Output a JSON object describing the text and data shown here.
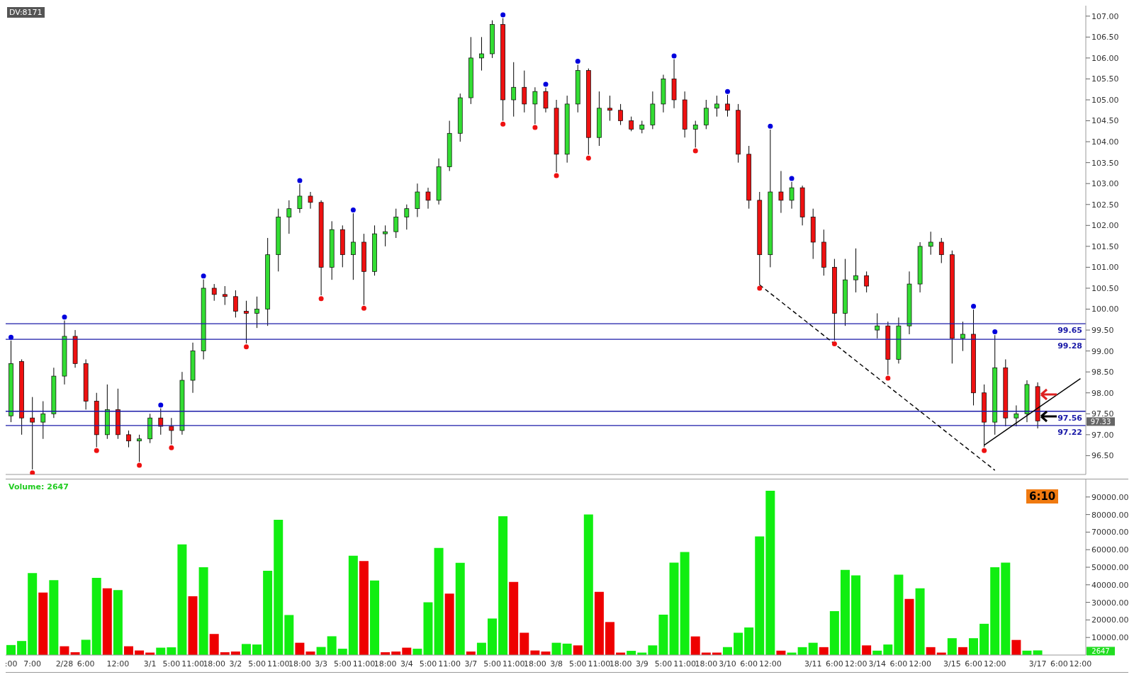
{
  "chart_data": [
    {
      "type": "candlestick",
      "tick_labels": "y",
      "ohlc": [
        [
          97.45,
          99.25,
          97.3,
          98.7
        ],
        [
          98.75,
          98.8,
          97.0,
          97.4
        ],
        [
          97.4,
          97.9,
          96.17,
          97.3
        ],
        [
          97.3,
          97.8,
          96.9,
          97.5
        ],
        [
          97.5,
          98.6,
          97.4,
          98.4
        ],
        [
          98.4,
          99.73,
          98.2,
          99.35
        ],
        [
          99.35,
          99.5,
          98.6,
          98.7
        ],
        [
          98.7,
          98.8,
          97.6,
          97.8
        ],
        [
          97.8,
          98.0,
          96.7,
          97.0
        ],
        [
          97.0,
          98.2,
          96.9,
          97.6
        ],
        [
          97.6,
          98.1,
          96.9,
          97.0
        ],
        [
          97.0,
          97.1,
          96.7,
          96.85
        ],
        [
          96.85,
          97.0,
          96.35,
          96.9
        ],
        [
          96.9,
          97.5,
          96.8,
          97.4
        ],
        [
          97.4,
          97.63,
          97.0,
          97.2
        ],
        [
          97.2,
          97.4,
          96.77,
          97.1
        ],
        [
          97.1,
          98.5,
          97.0,
          98.3
        ],
        [
          98.3,
          99.2,
          98.0,
          99.0
        ],
        [
          99.0,
          100.71,
          98.8,
          100.5
        ],
        [
          100.5,
          100.6,
          100.2,
          100.35
        ],
        [
          100.35,
          100.55,
          100.1,
          100.3
        ],
        [
          100.3,
          100.45,
          99.8,
          99.95
        ],
        [
          99.95,
          100.2,
          99.18,
          99.9
        ],
        [
          99.9,
          100.3,
          99.55,
          100.0
        ],
        [
          100.0,
          101.7,
          99.6,
          101.3
        ],
        [
          101.3,
          102.4,
          100.9,
          102.2
        ],
        [
          102.2,
          102.6,
          101.8,
          102.4
        ],
        [
          102.4,
          102.99,
          102.3,
          102.7
        ],
        [
          102.7,
          102.8,
          102.4,
          102.55
        ],
        [
          102.55,
          102.6,
          100.33,
          101.0
        ],
        [
          101.0,
          102.1,
          100.7,
          101.9
        ],
        [
          101.9,
          102.0,
          101.0,
          101.3
        ],
        [
          101.3,
          102.29,
          100.7,
          101.6
        ],
        [
          101.6,
          101.8,
          100.1,
          100.9
        ],
        [
          100.9,
          102.0,
          100.8,
          101.8
        ],
        [
          101.8,
          102.0,
          101.5,
          101.85
        ],
        [
          101.85,
          102.4,
          101.7,
          102.2
        ],
        [
          102.2,
          102.5,
          101.9,
          102.4
        ],
        [
          102.4,
          103.0,
          102.2,
          102.8
        ],
        [
          102.8,
          102.9,
          102.4,
          102.6
        ],
        [
          102.6,
          103.6,
          102.5,
          103.4
        ],
        [
          103.4,
          104.5,
          103.3,
          104.2
        ],
        [
          104.2,
          105.15,
          104.0,
          105.05
        ],
        [
          105.05,
          106.5,
          104.9,
          106.0
        ],
        [
          106.0,
          106.5,
          105.7,
          106.1
        ],
        [
          106.1,
          106.9,
          106.0,
          106.8
        ],
        [
          106.8,
          106.95,
          104.5,
          105.0
        ],
        [
          105.0,
          105.9,
          104.6,
          105.3
        ],
        [
          105.3,
          105.7,
          104.7,
          104.9
        ],
        [
          104.9,
          105.3,
          104.42,
          105.2
        ],
        [
          105.2,
          105.29,
          104.7,
          104.8
        ],
        [
          104.8,
          105.0,
          103.27,
          103.7
        ],
        [
          103.7,
          105.1,
          103.5,
          104.9
        ],
        [
          104.9,
          105.84,
          104.7,
          105.7
        ],
        [
          105.7,
          105.75,
          103.69,
          104.1
        ],
        [
          104.1,
          105.2,
          103.9,
          104.8
        ],
        [
          104.8,
          105.1,
          104.5,
          104.75
        ],
        [
          104.75,
          104.9,
          104.4,
          104.5
        ],
        [
          104.5,
          104.6,
          104.25,
          104.3
        ],
        [
          104.3,
          104.5,
          104.2,
          104.4
        ],
        [
          104.4,
          105.2,
          104.3,
          104.9
        ],
        [
          104.9,
          105.6,
          104.7,
          105.5
        ],
        [
          105.5,
          105.97,
          104.8,
          105.0
        ],
        [
          105.0,
          105.2,
          104.1,
          104.3
        ],
        [
          104.3,
          104.5,
          103.86,
          104.4
        ],
        [
          104.4,
          105.0,
          104.3,
          104.8
        ],
        [
          104.8,
          105.1,
          104.6,
          104.9
        ],
        [
          104.9,
          105.12,
          104.6,
          104.75
        ],
        [
          104.75,
          104.9,
          103.5,
          103.7
        ],
        [
          103.7,
          103.9,
          102.4,
          102.6
        ],
        [
          102.6,
          102.8,
          100.58,
          101.3
        ],
        [
          101.3,
          104.29,
          101.0,
          102.8
        ],
        [
          102.8,
          103.3,
          102.3,
          102.6
        ],
        [
          102.6,
          103.04,
          102.4,
          102.9
        ],
        [
          102.9,
          102.95,
          102.0,
          102.2
        ],
        [
          102.2,
          102.4,
          101.2,
          101.6
        ],
        [
          101.6,
          101.9,
          100.8,
          101.0
        ],
        [
          101.0,
          101.2,
          99.25,
          99.9
        ],
        [
          99.9,
          101.2,
          99.6,
          100.7
        ],
        [
          100.7,
          101.45,
          100.4,
          100.8
        ],
        [
          100.8,
          100.9,
          100.4,
          100.55
        ],
        [
          99.5,
          99.9,
          99.3,
          99.6
        ],
        [
          99.6,
          99.7,
          98.43,
          98.8
        ],
        [
          98.8,
          99.8,
          98.7,
          99.6
        ],
        [
          99.6,
          100.9,
          99.4,
          100.6
        ],
        [
          100.6,
          101.6,
          100.4,
          101.5
        ],
        [
          101.5,
          101.85,
          101.3,
          101.6
        ],
        [
          101.6,
          101.7,
          101.1,
          101.3
        ],
        [
          101.3,
          101.4,
          98.7,
          99.3
        ],
        [
          99.3,
          99.7,
          99.0,
          99.4
        ],
        [
          99.4,
          99.99,
          97.7,
          98.0
        ],
        [
          98.0,
          98.2,
          96.7,
          97.3
        ],
        [
          97.3,
          99.38,
          97.0,
          98.6
        ],
        [
          98.6,
          98.8,
          97.2,
          97.4
        ],
        [
          97.4,
          97.7,
          97.2,
          97.5
        ],
        [
          97.5,
          98.3,
          97.3,
          98.2
        ],
        [
          98.15,
          98.25,
          97.15,
          97.33
        ],
        null,
        null,
        null,
        null
      ],
      "colors": [
        "#33dd33",
        "#ee1111",
        "#ee1111",
        "#33dd33",
        "#33dd33",
        "#33dd33",
        "#ee1111",
        "#ee1111",
        "#ee1111",
        "#33dd33",
        "#ee1111",
        "#ee1111",
        "#33dd33",
        "#33dd33",
        "#ee1111",
        "#ee1111",
        "#33dd33",
        "#33dd33",
        "#33dd33",
        "#ee1111",
        "#ee1111",
        "#ee1111",
        "#ee1111",
        "#33dd33",
        "#33dd33",
        "#33dd33",
        "#33dd33",
        "#33dd33",
        "#ee1111",
        "#ee1111",
        "#33dd33",
        "#ee1111",
        "#33dd33",
        "#ee1111",
        "#33dd33",
        "#33dd33",
        "#33dd33",
        "#33dd33",
        "#33dd33",
        "#ee1111",
        "#33dd33",
        "#33dd33",
        "#33dd33",
        "#33dd33",
        "#33dd33",
        "#33dd33",
        "#ee1111",
        "#33dd33",
        "#ee1111",
        "#33dd33",
        "#ee1111",
        "#ee1111",
        "#33dd33",
        "#33dd33",
        "#ee1111",
        "#33dd33",
        "#ee1111",
        "#ee1111",
        "#ee1111",
        "#33dd33",
        "#33dd33",
        "#33dd33",
        "#ee1111",
        "#ee1111",
        "#33dd33",
        "#33dd33",
        "#33dd33",
        "#ee1111",
        "#ee1111",
        "#ee1111",
        "#ee1111",
        "#33dd33",
        "#ee1111",
        "#33dd33",
        "#ee1111",
        "#ee1111",
        "#ee1111",
        "#ee1111",
        "#33dd33",
        "#33dd33",
        "#ee1111",
        "#33dd33",
        "#ee1111",
        "#33dd33",
        "#33dd33",
        "#33dd33",
        "#33dd33",
        "#ee1111",
        "#ee1111",
        "#33dd33",
        "#ee1111",
        "#ee1111",
        "#33dd33",
        "#ee1111",
        "#33dd33",
        "#33dd33",
        "#ee1111",
        null,
        null,
        null,
        null
      ],
      "series": [
        {
          "type": "scatter",
          "marker": "circle",
          "color": "#0000dd",
          "values": [
            99.33,
            null,
            null,
            null,
            null,
            99.81,
            null,
            null,
            null,
            null,
            null,
            null,
            null,
            null,
            97.71,
            null,
            null,
            null,
            100.79,
            null,
            null,
            null,
            null,
            null,
            null,
            null,
            null,
            103.07,
            null,
            null,
            null,
            null,
            102.37,
            null,
            null,
            null,
            null,
            null,
            null,
            null,
            null,
            null,
            null,
            null,
            null,
            null,
            107.03,
            null,
            null,
            null,
            105.37,
            null,
            null,
            105.92,
            null,
            null,
            null,
            null,
            null,
            null,
            null,
            null,
            106.05,
            null,
            null,
            null,
            null,
            105.2,
            null,
            null,
            null,
            104.37,
            null,
            103.12,
            null,
            null,
            null,
            null,
            null,
            null,
            null,
            null,
            null,
            null,
            null,
            null,
            null,
            null,
            null,
            null,
            100.07,
            null,
            99.46,
            null,
            null,
            null,
            null,
            null,
            null,
            null,
            null
          ]
        },
        {
          "type": "scatter",
          "marker": "circle",
          "color": "#ee1111",
          "values": [
            null,
            null,
            96.09,
            null,
            null,
            null,
            null,
            null,
            96.62,
            null,
            null,
            null,
            96.27,
            null,
            null,
            96.69,
            null,
            null,
            null,
            null,
            null,
            null,
            99.1,
            null,
            null,
            null,
            null,
            null,
            null,
            100.25,
            null,
            null,
            null,
            100.02,
            null,
            null,
            null,
            null,
            null,
            null,
            null,
            null,
            null,
            null,
            null,
            null,
            104.42,
            null,
            null,
            104.34,
            null,
            103.19,
            null,
            null,
            103.61,
            null,
            null,
            null,
            null,
            null,
            null,
            null,
            null,
            null,
            103.78,
            null,
            null,
            null,
            null,
            null,
            100.5,
            null,
            null,
            null,
            null,
            null,
            null,
            99.17,
            null,
            null,
            null,
            null,
            98.35,
            null,
            null,
            null,
            null,
            null,
            null,
            null,
            null,
            96.62,
            null,
            null,
            null,
            null,
            null,
            null,
            null,
            null,
            null
          ]
        },
        {
          "type": "line",
          "line_style": "dashed",
          "color": "#000000",
          "values": [
            null,
            null,
            null,
            null,
            null,
            null,
            null,
            null,
            null,
            null,
            null,
            null,
            null,
            null,
            null,
            null,
            null,
            null,
            null,
            null,
            null,
            null,
            null,
            null,
            null,
            null,
            null,
            null,
            null,
            null,
            null,
            null,
            null,
            null,
            null,
            null,
            null,
            null,
            null,
            null,
            null,
            null,
            null,
            null,
            null,
            null,
            null,
            null,
            null,
            null,
            null,
            null,
            null,
            null,
            null,
            null,
            null,
            null,
            null,
            null,
            null,
            null,
            null,
            null,
            null,
            null,
            null,
            null,
            null,
            null,
            100.58,
            null,
            null,
            null,
            null,
            null,
            null,
            null,
            null,
            null,
            null,
            null,
            null,
            null,
            null,
            null,
            null,
            null,
            null,
            null,
            null,
            null,
            96.15,
            null,
            null,
            null,
            null,
            null,
            null,
            null,
            null
          ]
        },
        {
          "type": "line",
          "line_style": "solid",
          "color": "#000000",
          "values": [
            null,
            null,
            null,
            null,
            null,
            null,
            null,
            null,
            null,
            null,
            null,
            null,
            null,
            null,
            null,
            null,
            null,
            null,
            null,
            null,
            null,
            null,
            null,
            null,
            null,
            null,
            null,
            null,
            null,
            null,
            null,
            null,
            null,
            null,
            null,
            null,
            null,
            null,
            null,
            null,
            null,
            null,
            null,
            null,
            null,
            null,
            null,
            null,
            null,
            null,
            null,
            null,
            null,
            null,
            null,
            null,
            null,
            null,
            null,
            null,
            null,
            null,
            null,
            null,
            null,
            null,
            null,
            null,
            null,
            null,
            null,
            null,
            null,
            null,
            null,
            null,
            null,
            null,
            null,
            null,
            null,
            null,
            null,
            null,
            null,
            null,
            null,
            null,
            null,
            null,
            null,
            96.75,
            null,
            null,
            null,
            null,
            null,
            null,
            null,
            null,
            98.34
          ]
        }
      ],
      "ylim": [
        96.05,
        107.25
      ],
      "yticks": [
        {
          "value": 96.5,
          "label": "96.50"
        },
        {
          "value": 97,
          "label": "97.00"
        },
        {
          "value": 97.5,
          "label": "97.50"
        },
        {
          "value": 98,
          "label": "98.00"
        },
        {
          "value": 98.5,
          "label": "98.50"
        },
        {
          "value": 99,
          "label": "99.00"
        },
        {
          "value": 99.5,
          "label": "99.50"
        },
        {
          "value": 100,
          "label": "100.00"
        },
        {
          "value": 100.5,
          "label": "100.50"
        },
        {
          "value": 101,
          "label": "101.00"
        },
        {
          "value": 101.5,
          "label": "101.50"
        },
        {
          "value": 102,
          "label": "102.00"
        },
        {
          "value": 102.5,
          "label": "102.50"
        },
        {
          "value": 103,
          "label": "103.00"
        },
        {
          "value": 103.5,
          "label": "103.50"
        },
        {
          "value": 104,
          "label": "104.00"
        },
        {
          "value": 104.5,
          "label": "104.50"
        },
        {
          "value": 105,
          "label": "105.00"
        },
        {
          "value": 105.5,
          "label": "105.50"
        },
        {
          "value": 106,
          "label": "106.00"
        },
        {
          "value": 106.5,
          "label": "106.50"
        },
        {
          "value": 107,
          "label": "107.00"
        }
      ],
      "ref_lines": [
        {
          "axis": "y",
          "value": 99.65,
          "label": "99.65",
          "color": "#1a1aa8"
        },
        {
          "axis": "y",
          "value": 99.28,
          "label": "99.28",
          "color": "#1a1aa8"
        },
        {
          "axis": "y",
          "value": 97.56,
          "label": "97.56",
          "color": "#1a1aa8"
        },
        {
          "axis": "y",
          "value": 97.22,
          "label": "97.22",
          "color": "#1a1aa8"
        }
      ],
      "annotations": [
        "DV:8171",
        {
          "text": "97.33",
          "y": 97.33
        }
      ]
    },
    {
      "type": "bar",
      "categories": [
        ":00",
        null,
        "7:00",
        null,
        null,
        "2/28",
        null,
        "6:00",
        null,
        null,
        "12:00",
        null,
        null,
        "3/1",
        null,
        "5:00",
        null,
        "11:00",
        null,
        "18:00",
        null,
        "3/2",
        null,
        "5:00",
        null,
        "11:00",
        null,
        "18:00",
        null,
        "3/3",
        null,
        "5:00",
        null,
        "11:00",
        null,
        "18:00",
        null,
        "3/4",
        null,
        "5:00",
        null,
        "11:00",
        null,
        "3/7",
        null,
        "5:00",
        null,
        "11:00",
        null,
        "18:00",
        null,
        "3/8",
        null,
        "5:00",
        null,
        "11:00",
        null,
        "18:00",
        null,
        "3/9",
        null,
        "5:00",
        null,
        "11:00",
        null,
        "18:00",
        null,
        "3/10",
        null,
        "6:00",
        null,
        "12:00",
        null,
        null,
        null,
        "3/11",
        null,
        "6:00",
        null,
        "12:00",
        null,
        "3/14",
        null,
        "6:00",
        null,
        "12:00",
        null,
        null,
        "3/15",
        null,
        "6:00",
        null,
        "12:00",
        null,
        null,
        null,
        "3/17",
        null,
        "6:00",
        null,
        "12:00"
      ],
      "values": [
        5700,
        8000,
        46700,
        35600,
        42600,
        5000,
        1600,
        8700,
        44000,
        38000,
        37000,
        5000,
        2600,
        1400,
        4200,
        4400,
        63000,
        33500,
        50000,
        12000,
        1600,
        2000,
        6300,
        6000,
        48000,
        77000,
        22800,
        7000,
        2000,
        4600,
        10700,
        3600,
        56600,
        53500,
        42400,
        1600,
        2000,
        4200,
        3600,
        30000,
        61000,
        35000,
        52500,
        2000,
        7000,
        20800,
        79000,
        41600,
        12700,
        2600,
        2000,
        7000,
        6500,
        5500,
        80000,
        36000,
        18800,
        1400,
        2400,
        1400,
        5500,
        23000,
        52600,
        58700,
        10600,
        1400,
        1400,
        4500,
        12700,
        15700,
        67500,
        93500,
        2500,
        1400,
        4500,
        7000,
        4500,
        25000,
        48500,
        45400,
        5500,
        2500,
        6000,
        45800,
        32000,
        38000,
        4500,
        1400,
        9600,
        4500,
        9600,
        17800,
        50000,
        52600,
        8600,
        2500,
        2647,
        null,
        null,
        null,
        null
      ],
      "colors": [
        "#11ee11",
        "#11ee11",
        "#11ee11",
        "#ee0000",
        "#11ee11",
        "#ee0000",
        "#ee0000",
        "#11ee11",
        "#11ee11",
        "#ee0000",
        "#11ee11",
        "#ee0000",
        "#ee0000",
        "#ee0000",
        "#11ee11",
        "#11ee11",
        "#11ee11",
        "#ee0000",
        "#11ee11",
        "#ee0000",
        "#ee0000",
        "#ee0000",
        "#11ee11",
        "#11ee11",
        "#11ee11",
        "#11ee11",
        "#11ee11",
        "#ee0000",
        "#ee0000",
        "#11ee11",
        "#11ee11",
        "#11ee11",
        "#11ee11",
        "#ee0000",
        "#11ee11",
        "#ee0000",
        "#ee0000",
        "#ee0000",
        "#11ee11",
        "#11ee11",
        "#11ee11",
        "#ee0000",
        "#11ee11",
        "#ee0000",
        "#11ee11",
        "#11ee11",
        "#11ee11",
        "#ee0000",
        "#ee0000",
        "#ee0000",
        "#ee0000",
        "#11ee11",
        "#11ee11",
        "#ee0000",
        "#11ee11",
        "#ee0000",
        "#ee0000",
        "#ee0000",
        "#11ee11",
        "#11ee11",
        "#11ee11",
        "#11ee11",
        "#11ee11",
        "#11ee11",
        "#ee0000",
        "#ee0000",
        "#ee0000",
        "#11ee11",
        "#11ee11",
        "#11ee11",
        "#11ee11",
        "#11ee11",
        "#ee0000",
        "#11ee11",
        "#11ee11",
        "#11ee11",
        "#ee0000",
        "#11ee11",
        "#11ee11",
        "#11ee11",
        "#ee0000",
        "#11ee11",
        "#11ee11",
        "#11ee11",
        "#ee0000",
        "#11ee11",
        "#ee0000",
        "#ee0000",
        "#11ee11",
        "#ee0000",
        "#11ee11",
        "#11ee11",
        "#11ee11",
        "#11ee11",
        "#ee0000",
        "#11ee11",
        "#11ee11",
        null,
        null,
        null,
        null
      ],
      "ylim": [
        0,
        100000
      ],
      "yticks": [
        {
          "value": 10000,
          "label": "10000.00"
        },
        {
          "value": 20000,
          "label": "20000.00"
        },
        {
          "value": 30000,
          "label": "30000.00"
        },
        {
          "value": 40000,
          "label": "40000.00"
        },
        {
          "value": 50000,
          "label": "50000.00"
        },
        {
          "value": 60000,
          "label": "60000.00"
        },
        {
          "value": 70000,
          "label": "70000.00"
        },
        {
          "value": 80000,
          "label": "80000.00"
        },
        {
          "value": 90000,
          "label": "90000.00"
        }
      ],
      "annotations": [
        "Volume: 2647",
        "6:10",
        {
          "text": "2647",
          "y": 2647
        }
      ]
    }
  ]
}
